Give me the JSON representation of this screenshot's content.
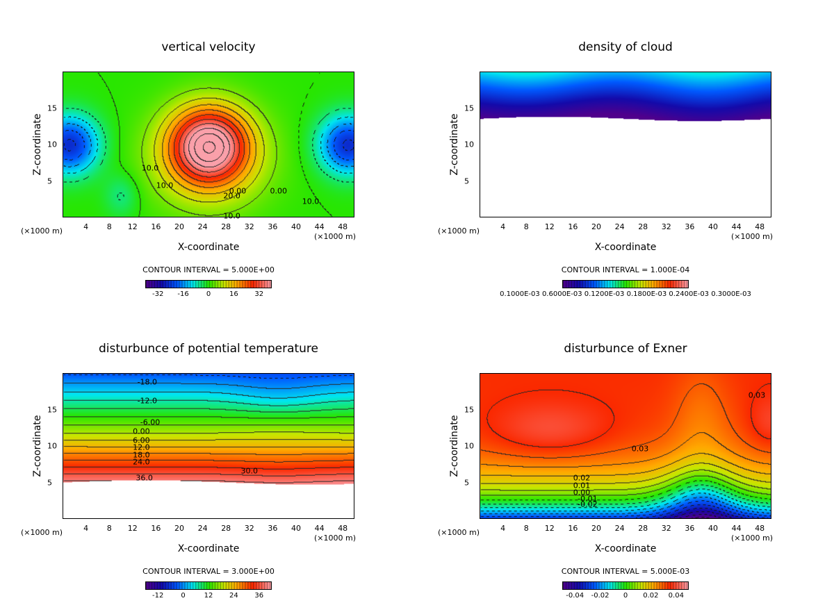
{
  "chart_data": [
    {
      "type": "heatmap",
      "title": "vertical velocity",
      "xlabel": "X-coordinate",
      "ylabel": "Z-coordinate",
      "x_unit": "(×1000 m)",
      "xlim": [
        0,
        50
      ],
      "ylim": [
        0,
        20
      ],
      "xticks": [
        "4",
        "8",
        "12",
        "16",
        "20",
        "24",
        "28",
        "32",
        "36",
        "40",
        "44",
        "48"
      ],
      "yticks": [
        "5",
        "10",
        "15"
      ],
      "contour_interval": "CONTOUR INTERVAL = 5.000E+00",
      "colorbar_range": [
        -40,
        40
      ],
      "colorbar_ticks": [
        "-32",
        "-16",
        "0",
        "16",
        "32"
      ],
      "contour_labels": [
        "10.0",
        "0.00",
        "10.0",
        "20.0",
        "10.0",
        "0.00",
        "10.0"
      ]
    },
    {
      "type": "heatmap",
      "title": "density of cloud",
      "xlabel": "X-coordinate",
      "ylabel": "Z-coordinate",
      "x_unit": "(×1000 m)",
      "xlim": [
        0,
        50
      ],
      "ylim": [
        0,
        20
      ],
      "xticks": [
        "4",
        "8",
        "12",
        "16",
        "20",
        "24",
        "28",
        "32",
        "36",
        "40",
        "44",
        "48"
      ],
      "yticks": [
        "5",
        "10",
        "15"
      ],
      "contour_interval": "CONTOUR INTERVAL = 1.000E-04",
      "colorbar_range": [
        0.0001,
        0.001
      ],
      "colorbar_ticks": [
        "0.1000E-03 0.6000E-03 0.1200E-03 0.1800E-03 0.2400E-03 0.3000E-03"
      ],
      "contour_labels": []
    },
    {
      "type": "heatmap",
      "title": "disturbunce of potential temperature",
      "xlabel": "X-coordinate",
      "ylabel": "Z-coordinate",
      "x_unit": "(×1000 m)",
      "xlim": [
        0,
        50
      ],
      "ylim": [
        0,
        20
      ],
      "xticks": [
        "4",
        "8",
        "12",
        "16",
        "20",
        "24",
        "28",
        "32",
        "36",
        "40",
        "44",
        "48"
      ],
      "yticks": [
        "5",
        "10",
        "15"
      ],
      "contour_interval": "CONTOUR INTERVAL = 3.000E+00",
      "colorbar_range": [
        -18,
        42
      ],
      "colorbar_ticks": [
        "-12",
        "0",
        "12",
        "24",
        "36"
      ],
      "contour_labels": [
        "-18.0",
        "-12.0",
        "-6.00",
        "0.00",
        "6.00",
        "12.0",
        "18.0",
        "24.0",
        "36.0",
        "30.0"
      ]
    },
    {
      "type": "heatmap",
      "title": "disturbunce of Exner",
      "xlabel": "X-coordinate",
      "ylabel": "Z-coordinate",
      "x_unit": "(×1000 m)",
      "xlim": [
        0,
        50
      ],
      "ylim": [
        0,
        20
      ],
      "xticks": [
        "4",
        "8",
        "12",
        "16",
        "20",
        "24",
        "28",
        "32",
        "36",
        "40",
        "44",
        "48"
      ],
      "yticks": [
        "5",
        "10",
        "15"
      ],
      "contour_interval": "CONTOUR INTERVAL = 5.000E-03",
      "colorbar_range": [
        -0.05,
        0.05
      ],
      "colorbar_ticks": [
        "-0.04",
        "-0.02",
        "0",
        "0.02",
        "0.04"
      ],
      "contour_labels": [
        "0.03",
        "0.03",
        "0.02",
        "0.01",
        "0.00",
        "-0.01",
        "-0.02"
      ]
    }
  ]
}
